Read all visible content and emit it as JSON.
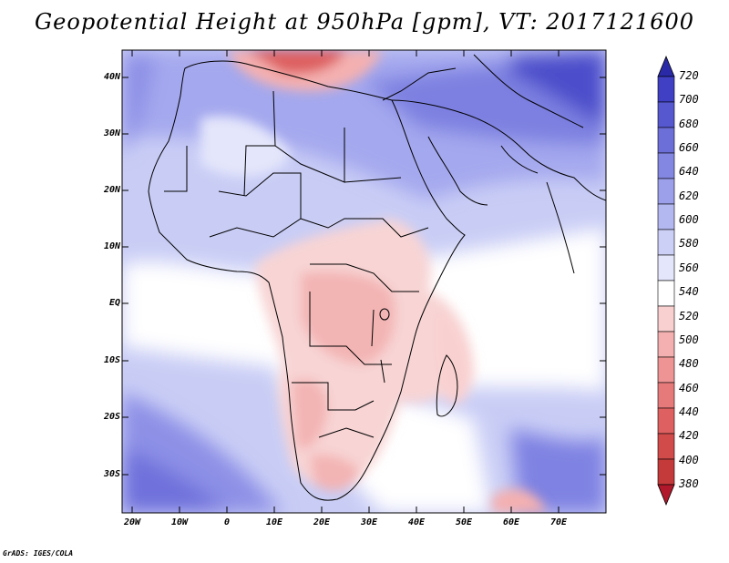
{
  "title": "Geopotential Height at 950hPa [gpm], VT: 2017121600",
  "credit": "GrADS: IGES/COLA",
  "lat_labels": [
    "40N",
    "30N",
    "20N",
    "10N",
    "EQ",
    "10S",
    "20S",
    "30S"
  ],
  "lon_labels": [
    "20W",
    "10W",
    "0",
    "10E",
    "20E",
    "30E",
    "40E",
    "50E",
    "60E",
    "70E"
  ],
  "colorbar": {
    "levels": [
      "380",
      "400",
      "420",
      "440",
      "460",
      "480",
      "500",
      "520",
      "540",
      "560",
      "580",
      "600",
      "620",
      "640",
      "660",
      "680",
      "700",
      "720"
    ],
    "colors": [
      "#b2182b",
      "#c43a3a",
      "#d24b4b",
      "#de6060",
      "#e67a7a",
      "#ee9494",
      "#f4b0b0",
      "#f9d0d0",
      "#ffffff",
      "#e4e6fb",
      "#ccd0f6",
      "#b4b8f0",
      "#9c9fea",
      "#8487e2",
      "#6d6fd9",
      "#5658cf",
      "#3f40c3",
      "#2a2aa8"
    ]
  }
}
